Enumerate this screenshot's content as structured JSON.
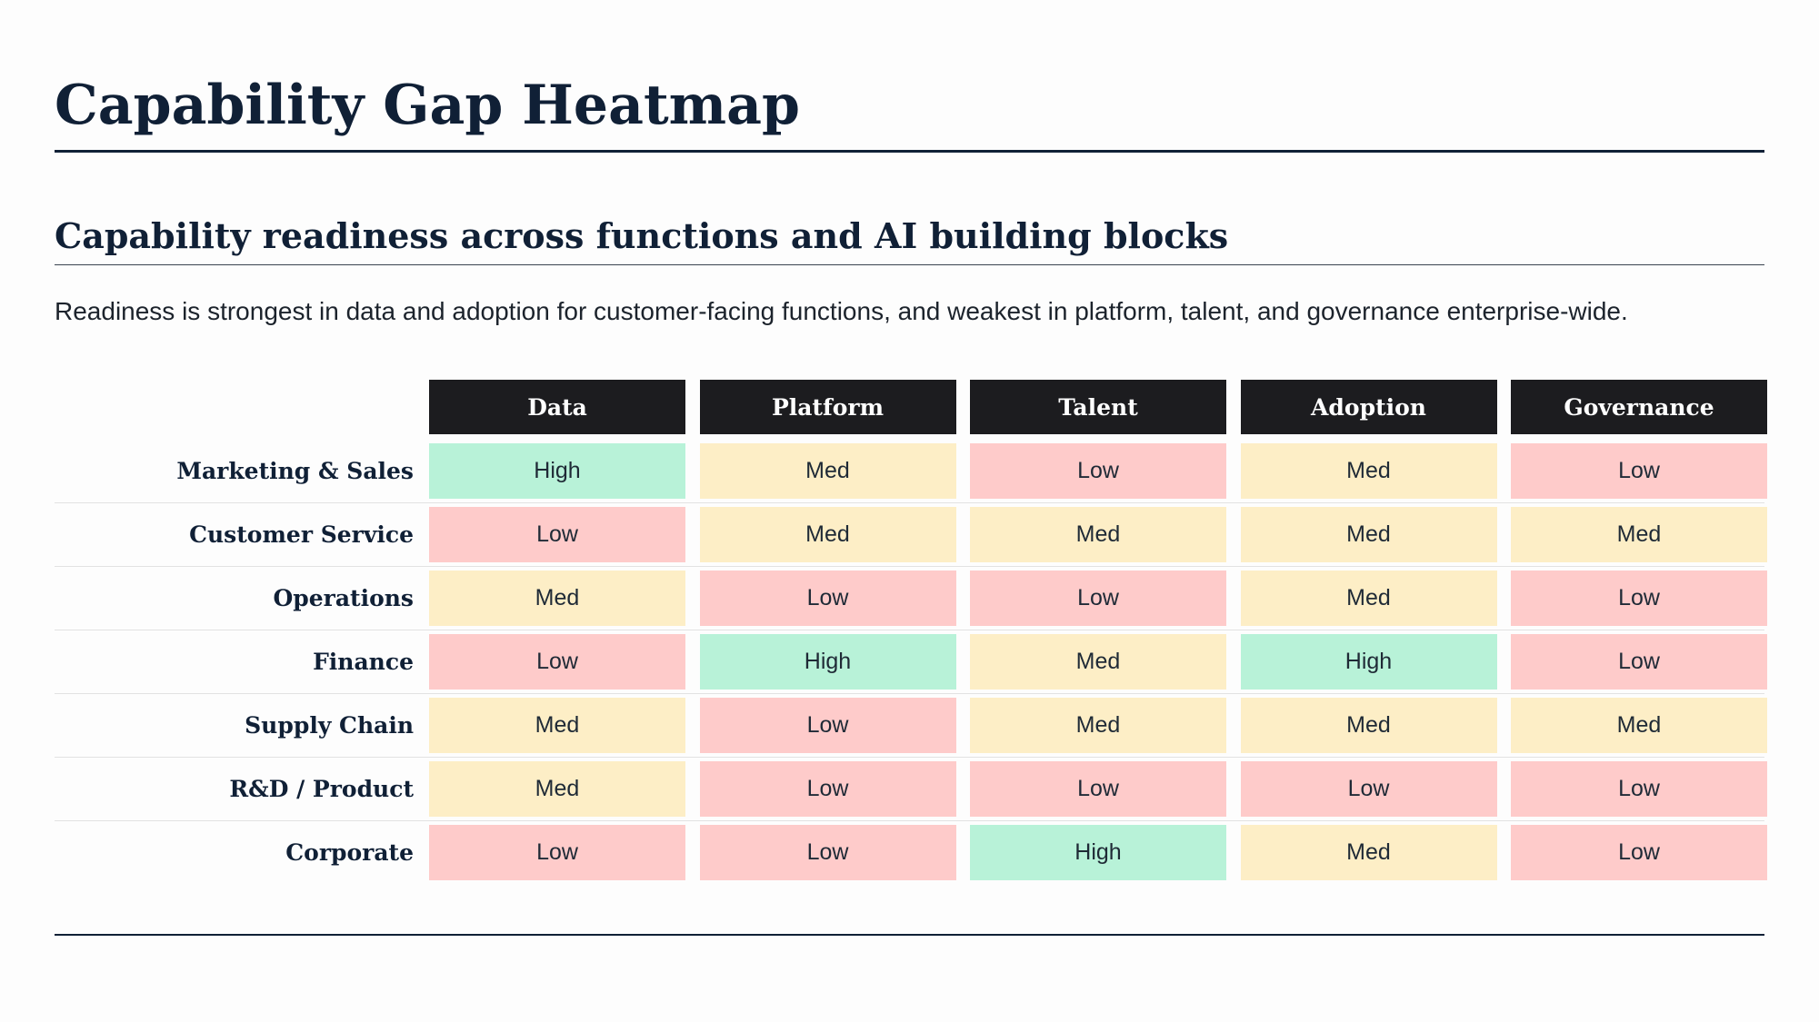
{
  "title": "Capability Gap Heatmap",
  "subtitle": "Capability readiness across functions and AI building blocks",
  "summary": "Readiness is strongest in data and adoption for customer-facing functions, and weakest in platform, talent, and governance enterprise-wide.",
  "colors": {
    "High": "#b8f2d8",
    "Med": "#fdeec6",
    "Low": "#fecbca",
    "header_bg": "#1c1c1f"
  },
  "chart_data": {
    "type": "heatmap",
    "columns": [
      "Data",
      "Platform",
      "Talent",
      "Adoption",
      "Governance"
    ],
    "rows": [
      {
        "label": "Marketing & Sales",
        "values": [
          "High",
          "Med",
          "Low",
          "Med",
          "Low"
        ]
      },
      {
        "label": "Customer Service",
        "values": [
          "Low",
          "Med",
          "Med",
          "Med",
          "Med"
        ]
      },
      {
        "label": "Operations",
        "values": [
          "Med",
          "Low",
          "Low",
          "Med",
          "Low"
        ]
      },
      {
        "label": "Finance",
        "values": [
          "Low",
          "High",
          "Med",
          "High",
          "Low"
        ]
      },
      {
        "label": "Supply Chain",
        "values": [
          "Med",
          "Low",
          "Med",
          "Med",
          "Med"
        ]
      },
      {
        "label": "R&D / Product",
        "values": [
          "Med",
          "Low",
          "Low",
          "Low",
          "Low"
        ]
      },
      {
        "label": "Corporate",
        "values": [
          "Low",
          "Low",
          "High",
          "Med",
          "Low"
        ]
      }
    ]
  }
}
